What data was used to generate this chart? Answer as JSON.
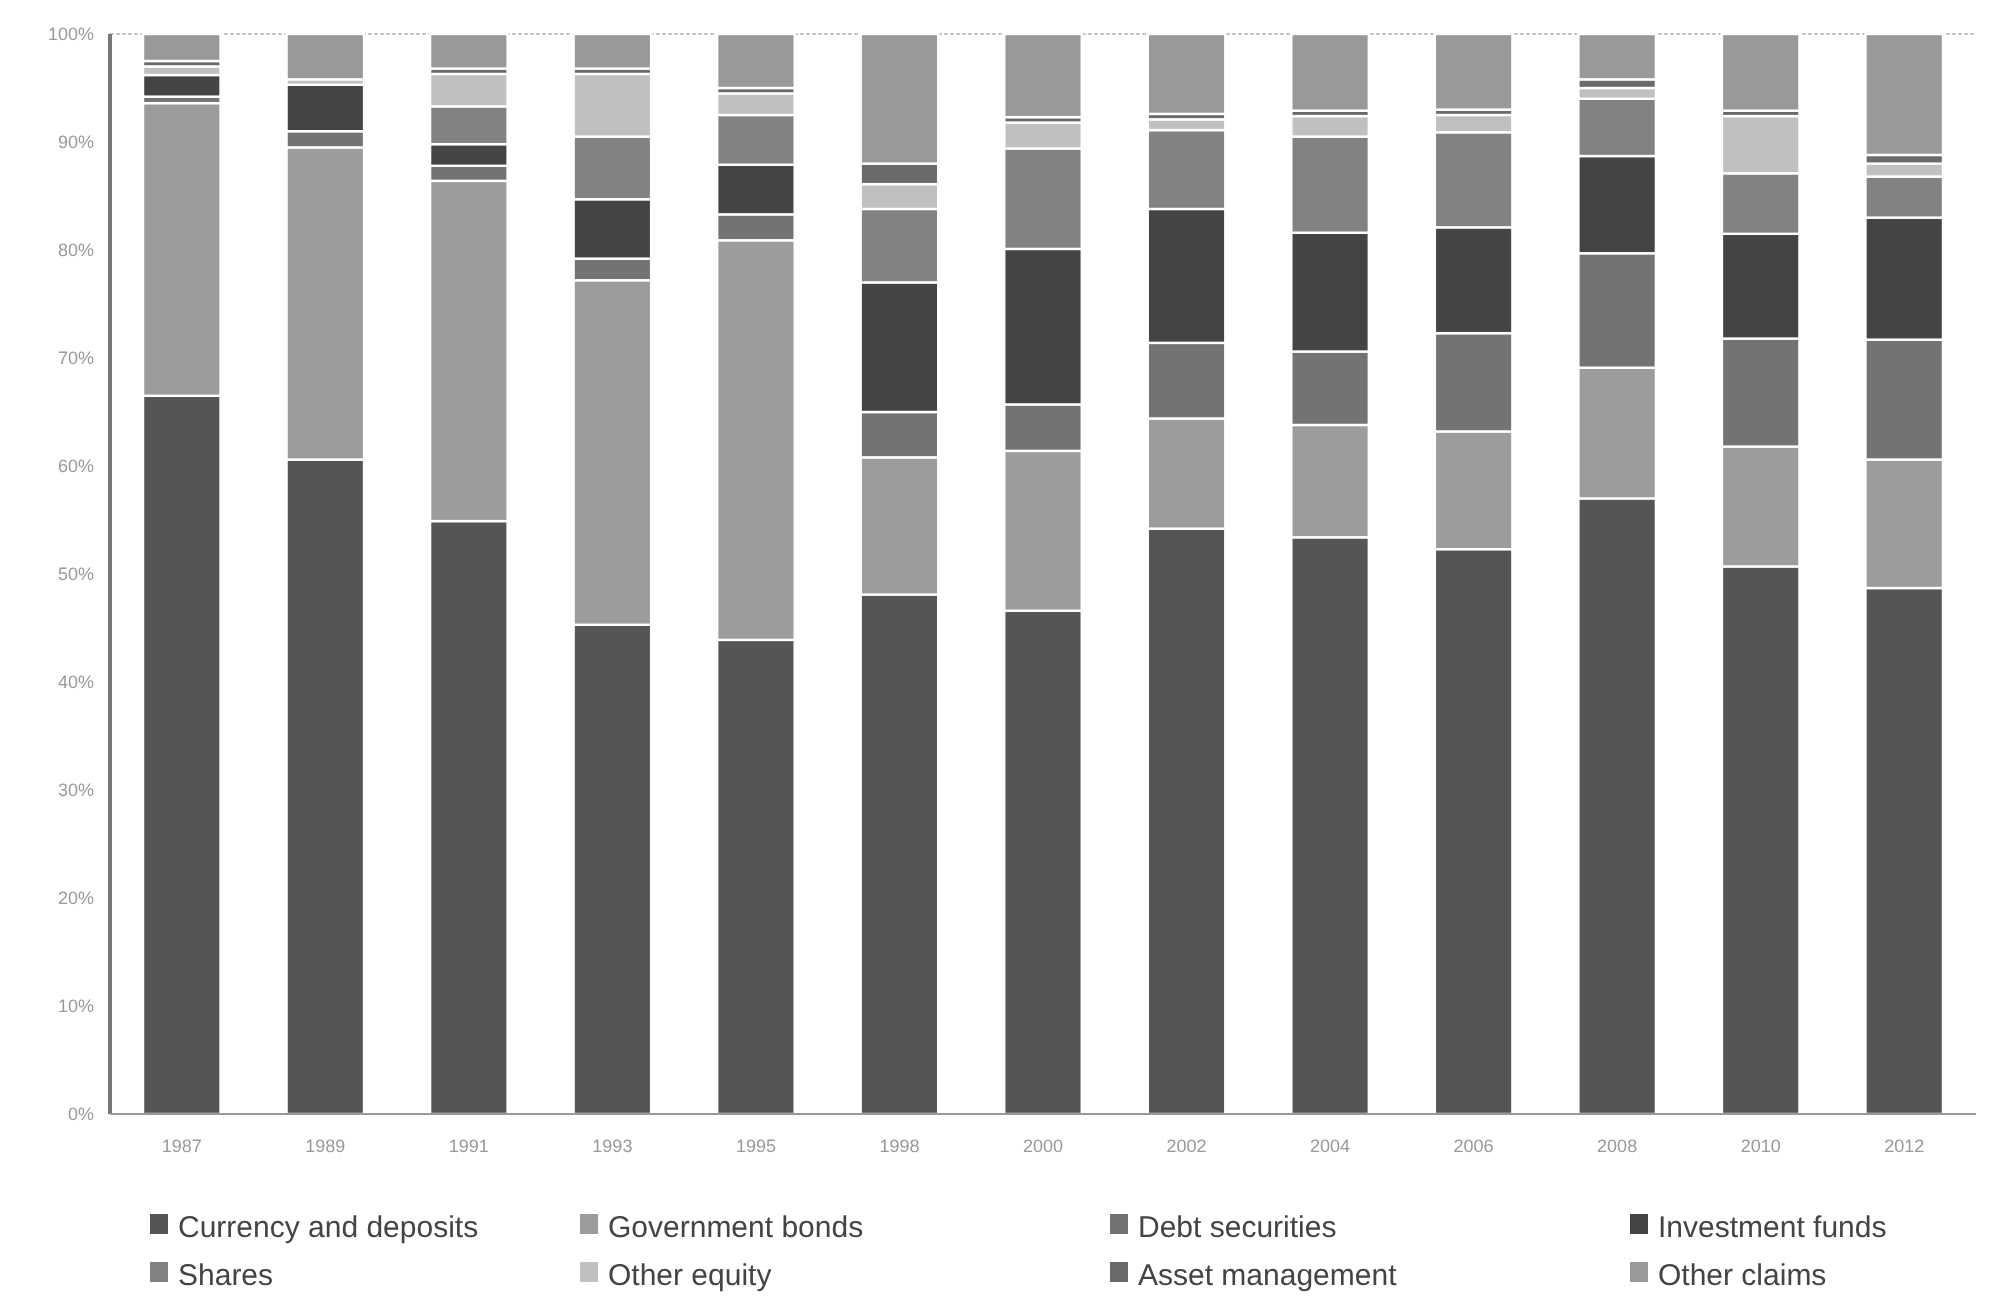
{
  "chart_data": {
    "type": "bar",
    "stacked": true,
    "categories": [
      "1987",
      "1989",
      "1991",
      "1993",
      "1995",
      "1998",
      "2000",
      "2002",
      "2004",
      "2006",
      "2008",
      "2010",
      "2012"
    ],
    "ylim": [
      0,
      100
    ],
    "yticks": [
      {
        "value": 0,
        "label": "0%"
      },
      {
        "value": 10,
        "label": "10%"
      },
      {
        "value": 20,
        "label": "20%"
      },
      {
        "value": 30,
        "label": "30%"
      },
      {
        "value": 40,
        "label": "40%"
      },
      {
        "value": 50,
        "label": "50%"
      },
      {
        "value": 60,
        "label": "60%"
      },
      {
        "value": 70,
        "label": "70%"
      },
      {
        "value": 80,
        "label": "80%"
      },
      {
        "value": 90,
        "label": "90%"
      },
      {
        "value": 100,
        "label": "100%"
      }
    ],
    "grid": false,
    "legend": "bottom",
    "series": [
      {
        "name": "Currency and deposits",
        "color": "#555555",
        "values": [
          66.5,
          60.6,
          54.9,
          45.3,
          43.9,
          48.1,
          46.6,
          54.2,
          53.4,
          52.3,
          57.0,
          50.7,
          48.7
        ]
      },
      {
        "name": "Government bonds",
        "color": "#9c9c9c",
        "values": [
          27.1,
          28.9,
          31.5,
          31.9,
          37.0,
          12.7,
          14.8,
          10.2,
          10.4,
          10.9,
          12.1,
          11.1,
          11.9
        ]
      },
      {
        "name": "Debt securities",
        "color": "#737373",
        "values": [
          0.6,
          1.5,
          1.4,
          2.0,
          2.4,
          4.2,
          4.3,
          7.0,
          6.8,
          9.1,
          10.6,
          10.0,
          11.1
        ]
      },
      {
        "name": "Investment funds",
        "color": "#444444",
        "values": [
          2.0,
          4.3,
          2.0,
          5.5,
          4.6,
          12.0,
          14.4,
          12.4,
          11.0,
          9.8,
          9.0,
          9.7,
          11.3
        ]
      },
      {
        "name": "Shares",
        "color": "#828282",
        "values": [
          0.0,
          0.0,
          3.5,
          5.8,
          4.6,
          6.8,
          9.3,
          7.3,
          8.9,
          8.8,
          5.3,
          5.6,
          3.8
        ]
      },
      {
        "name": "Other equity",
        "color": "#c0c0c0",
        "values": [
          0.8,
          0.5,
          3.0,
          5.8,
          2.0,
          2.3,
          2.4,
          1.0,
          1.9,
          1.6,
          1.0,
          5.3,
          1.2
        ]
      },
      {
        "name": "Asset management",
        "color": "#6a6a6a",
        "values": [
          0.5,
          0.0,
          0.5,
          0.5,
          0.5,
          1.9,
          0.5,
          0.5,
          0.5,
          0.5,
          0.8,
          0.5,
          0.8
        ]
      },
      {
        "name": "Other claims",
        "color": "#999999",
        "values": [
          2.5,
          4.2,
          3.2,
          3.2,
          5.0,
          12.0,
          7.7,
          7.4,
          7.1,
          7.0,
          4.2,
          7.1,
          11.2
        ]
      }
    ]
  }
}
